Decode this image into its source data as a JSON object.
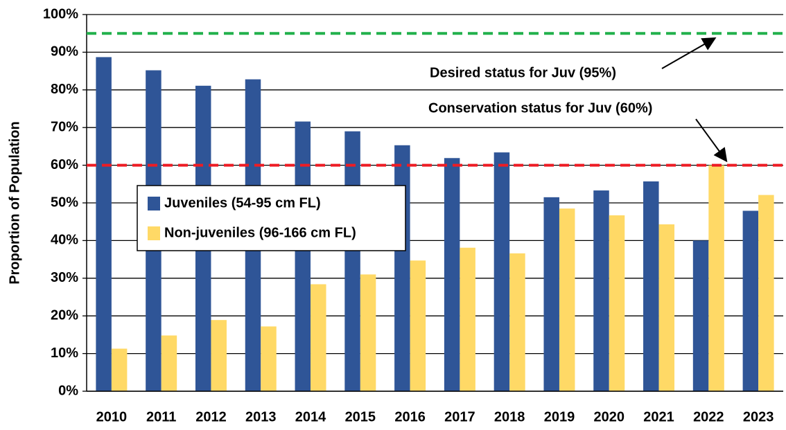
{
  "chart_data": {
    "type": "bar",
    "y_axis_label": "Proportion of Population",
    "categories": [
      "2010",
      "2011",
      "2012",
      "2013",
      "2014",
      "2015",
      "2016",
      "2017",
      "2018",
      "2019",
      "2020",
      "2021",
      "2022",
      "2023"
    ],
    "series": [
      {
        "name": "Juveniles (54-95 cm FL)",
        "color": "#2f5597",
        "values": [
          88.7,
          85.2,
          81.1,
          82.8,
          71.6,
          69.0,
          65.3,
          61.9,
          63.4,
          51.5,
          53.3,
          55.7,
          40.0,
          47.9
        ]
      },
      {
        "name": "Non-juveniles (96-166 cm FL)",
        "color": "#ffd966",
        "values": [
          11.3,
          14.8,
          18.9,
          17.2,
          28.4,
          31.0,
          34.7,
          38.1,
          36.6,
          48.5,
          46.7,
          44.3,
          60.0,
          52.1
        ]
      }
    ],
    "ylim": [
      0,
      100
    ],
    "yticks": [
      {
        "value": 0,
        "label": "0%"
      },
      {
        "value": 10,
        "label": "10%"
      },
      {
        "value": 20,
        "label": "20%"
      },
      {
        "value": 30,
        "label": "30%"
      },
      {
        "value": 40,
        "label": "40%"
      },
      {
        "value": 50,
        "label": "50%"
      },
      {
        "value": 60,
        "label": "60%"
      },
      {
        "value": 70,
        "label": "70%"
      },
      {
        "value": 80,
        "label": "80%"
      },
      {
        "value": 90,
        "label": "90%"
      },
      {
        "value": 100,
        "label": "100%"
      }
    ],
    "grid": true,
    "reference_lines": [
      {
        "value": 95,
        "color": "#22b14c",
        "label": "Desired status for Juv (95%)"
      },
      {
        "value": 60,
        "color": "#ee1c24",
        "label": "Conservation status for Juv (60%)"
      }
    ]
  }
}
